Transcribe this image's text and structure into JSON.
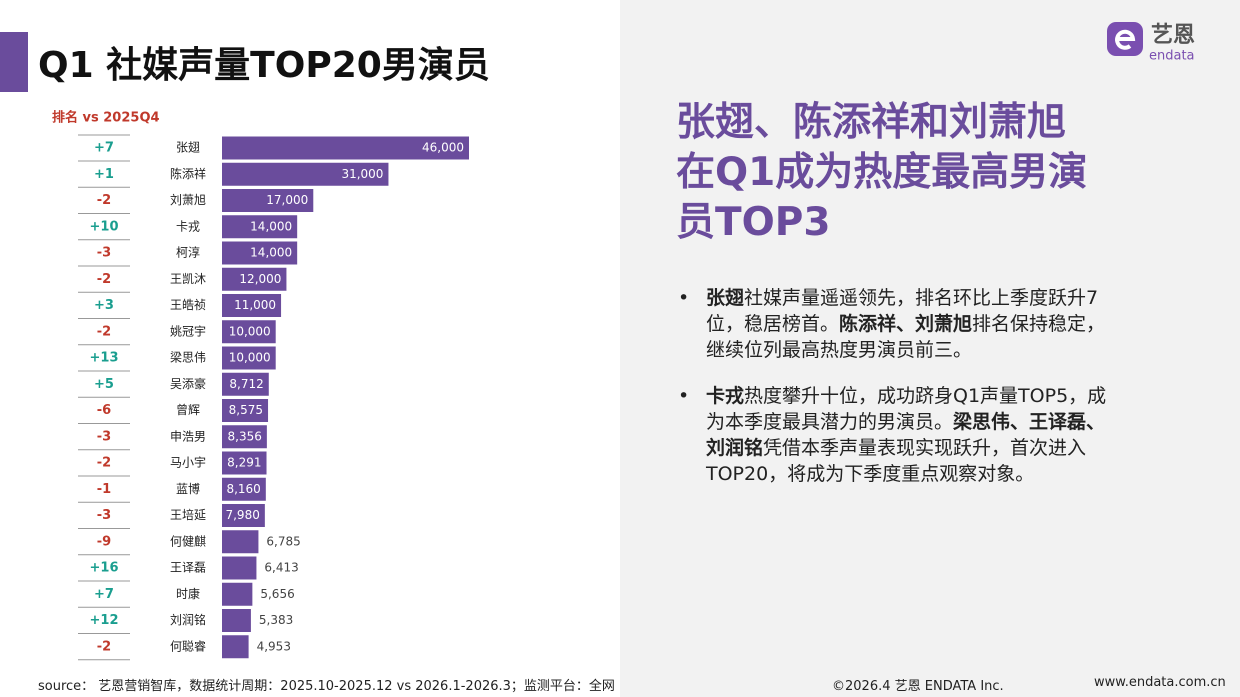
{
  "chart_data": {
    "type": "bar",
    "orientation": "horizontal",
    "title": "Q1 社媒声量TOP20男演员",
    "rank_header": "排名 vs 2025Q4",
    "categories": [
      "张翅",
      "陈添祥",
      "刘萧旭",
      "卡戎",
      "柯淳",
      "王凯沐",
      "王皓祯",
      "姚冠宇",
      "梁思伟",
      "吴添豪",
      "曾辉",
      "申浩男",
      "马小宇",
      "蓝博",
      "王培延",
      "何健麒",
      "王译磊",
      "时康",
      "刘润铭",
      "何聪睿"
    ],
    "values": [
      46000,
      31000,
      17000,
      14000,
      14000,
      12000,
      11000,
      10000,
      10000,
      8712,
      8575,
      8356,
      8291,
      8160,
      7980,
      6785,
      6413,
      5656,
      5383,
      4953
    ],
    "value_labels": [
      "46,000",
      "31,000",
      "17,000",
      "14,000",
      "14,000",
      "12,000",
      "11,000",
      "10,000",
      "10,000",
      "8,712",
      "8,575",
      "8,356",
      "8,291",
      "8,160",
      "7,980",
      "6,785",
      "6,413",
      "5,656",
      "5,383",
      "4,953"
    ],
    "rank_changes": [
      "+7",
      "+1",
      "-2",
      "+10",
      "-3",
      "-2",
      "+3",
      "-2",
      "+13",
      "+5",
      "-6",
      "-3",
      "-2",
      "-1",
      "-3",
      "-9",
      "+16",
      "+7",
      "+12",
      "-2"
    ],
    "color": "#6a4c9c"
  },
  "logo": {
    "name": "艺恩",
    "brand": "endata"
  },
  "headline": [
    "张翅、陈添祥和刘萧旭",
    "在Q1成为热度最高男演",
    "员TOP3"
  ],
  "bullets": [
    [
      {
        "text": "张翅",
        "bold": true
      },
      {
        "text": "社媒声量遥遥领先，排名环比上季度跃升7位，稳居榜首。",
        "bold": false
      },
      {
        "text": "陈添祥、刘萧旭",
        "bold": true
      },
      {
        "text": "排名保持稳定，继续位列最高热度男演员前三。",
        "bold": false
      }
    ],
    [
      {
        "text": "卡戎",
        "bold": true
      },
      {
        "text": "热度攀升十位，成功跻身Q1声量TOP5，成为本季度最具潜力的男演员。",
        "bold": false
      },
      {
        "text": "梁思伟、王译磊、刘润铭",
        "bold": true
      },
      {
        "text": "凭借本季声量表现实现跃升，首次进入TOP20，将成为下季度重点观察对象。",
        "bold": false
      }
    ]
  ],
  "footer": {
    "source": "source： 艺恩营销智库，数据统计周期：2025.10-2025.12 vs 2026.1-2026.3；监测平台：全网",
    "copyright": "©2026.4  艺恩 ENDATA Inc.",
    "url": "www.endata.com.cn"
  }
}
